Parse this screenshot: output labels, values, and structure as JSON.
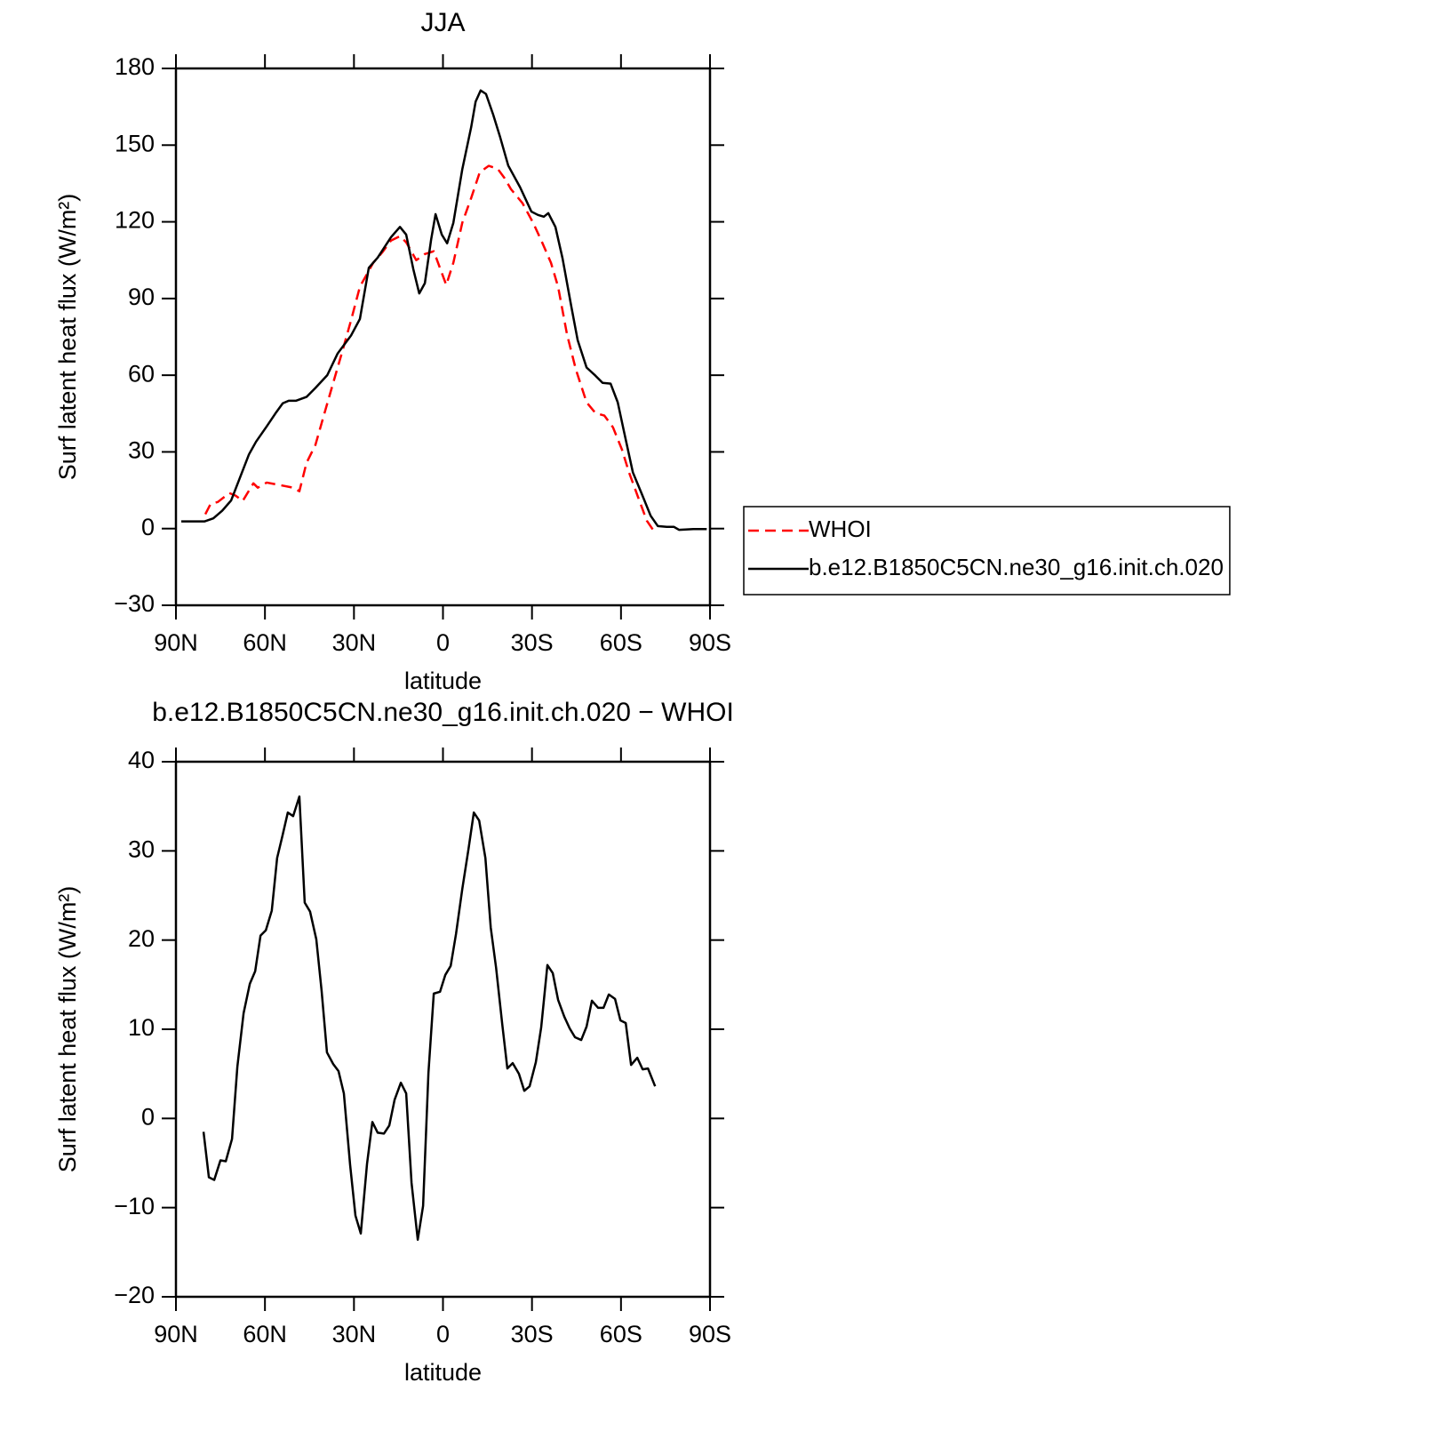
{
  "chart_data": [
    {
      "type": "line",
      "title": "JJA",
      "xlabel": "latitude",
      "ylabel": "Surf latent heat flux (W/m²)",
      "xlim": [
        90,
        -90
      ],
      "xticks": [
        {
          "value": 90,
          "label": "90N"
        },
        {
          "value": 60,
          "label": "60N"
        },
        {
          "value": 30,
          "label": "30N"
        },
        0,
        {
          "value": -30,
          "label": "30S"
        },
        {
          "value": -60,
          "label": "60S"
        },
        {
          "value": -90,
          "label": "90S"
        }
      ],
      "ylim": [
        -30,
        180
      ],
      "yticks": [
        {
          "value": -30,
          "label": "−30"
        },
        0,
        30,
        60,
        90,
        120,
        150,
        180
      ],
      "legend": "right",
      "series": [
        {
          "name": "WHOI",
          "color": "#ff0000",
          "style": "dashed",
          "x": [
            80.1,
            78.3,
            75.9,
            72,
            69.9,
            67.5,
            63.9,
            62.4,
            59.4,
            54.9,
            50.5,
            48.4,
            46,
            43,
            40,
            37,
            34,
            31,
            28,
            23.5,
            20.5,
            17.5,
            14.5,
            12.4,
            9,
            6.1,
            3.1,
            -1.1,
            -3.5,
            -6.5,
            -9.5,
            -12.4,
            -15.4,
            -18.4,
            -20.8,
            -22.9,
            -26.8,
            -30.4,
            -33.4,
            -36.4,
            -38.8,
            -41.8,
            -44.8,
            -48.4,
            -51.4,
            -54.4,
            -57.3,
            -60.3,
            -62.7,
            -65.7,
            -68.7,
            -71.7
          ],
          "values": [
            5.6,
            9.7,
            10.4,
            13.9,
            12.9,
            10.8,
            17.7,
            16,
            18,
            17,
            16,
            14.6,
            25.7,
            32.7,
            44.9,
            57,
            69,
            81.4,
            94.6,
            104,
            108,
            112.7,
            114.4,
            112,
            105,
            107.4,
            108.5,
            95.3,
            104,
            119.6,
            129.3,
            139.4,
            141.9,
            140.8,
            137,
            132.8,
            127.3,
            119.6,
            112,
            104,
            94.6,
            76,
            62.2,
            49.4,
            45.2,
            44.2,
            39.6,
            31,
            22,
            12.5,
            3.1,
            -2
          ]
        },
        {
          "name": "b.e12.B1850C5CN.ne30_g16.init.ch.020",
          "color": "#000000",
          "style": "solid",
          "x": [
            88.2,
            80.4,
            77.4,
            74.4,
            71.4,
            68.4,
            65.4,
            63,
            59.4,
            56.5,
            54,
            52,
            49.6,
            46,
            43,
            39,
            35.5,
            31,
            28,
            25,
            22,
            17.5,
            14.5,
            12.4,
            10,
            8,
            6.1,
            4,
            2.5,
            0.4,
            -1.4,
            -3.5,
            -6.5,
            -9.5,
            -11,
            -12.7,
            -14.5,
            -16.9,
            -19.3,
            -22,
            -26,
            -29.8,
            -32,
            -34,
            -35.5,
            -37.9,
            -40.3,
            -43.3,
            -45.4,
            -48.4,
            -51.4,
            -53.8,
            -56.5,
            -58.9,
            -61,
            -64,
            -67,
            -70,
            -72.4,
            -75.4,
            -77.8,
            -79.6,
            -84.4,
            -88.9
          ],
          "values": [
            2.8,
            2.8,
            4,
            7,
            11,
            20,
            29,
            34,
            40,
            45,
            49,
            50,
            50,
            51.5,
            55,
            60,
            68.5,
            75.5,
            82,
            102,
            106,
            114,
            118,
            115,
            101.5,
            92,
            96,
            113,
            123,
            115,
            111.6,
            119.6,
            140.5,
            157,
            167,
            171.4,
            170,
            162,
            153,
            142,
            133.5,
            124,
            122.7,
            122,
            123.4,
            118,
            105.7,
            86.6,
            73.7,
            63,
            59.8,
            57,
            56.7,
            49.4,
            38,
            22,
            13.6,
            5,
            1,
            0.7,
            0.7,
            -0.5,
            -0.2,
            -0.2
          ]
        }
      ]
    },
    {
      "type": "line",
      "title": "b.e12.B1850C5CN.ne30_g16.init.ch.020 − WHOI",
      "xlabel": "latitude",
      "ylabel": "Surf latent heat flux (W/m²)",
      "xlim": [
        90,
        -90
      ],
      "xticks": [
        {
          "value": 90,
          "label": "90N"
        },
        {
          "value": 60,
          "label": "60N"
        },
        {
          "value": 30,
          "label": "30N"
        },
        0,
        {
          "value": -30,
          "label": "30S"
        },
        {
          "value": -60,
          "label": "60S"
        },
        {
          "value": -90,
          "label": "90S"
        }
      ],
      "ylim": [
        -20,
        40
      ],
      "yticks": [
        {
          "value": -20,
          "label": "−20"
        },
        {
          "value": -10,
          "label": "−10"
        },
        0,
        10,
        20,
        30,
        40
      ],
      "series": [
        {
          "color": "#000000",
          "style": "solid",
          "x": [
            80.7,
            78.9,
            77.1,
            75,
            73.2,
            71.1,
            69.3,
            67.2,
            65.1,
            63.3,
            61.5,
            59.7,
            57.7,
            55.9,
            54.1,
            52.3,
            50.5,
            48.4,
            46.6,
            44.8,
            42.7,
            40.9,
            39.1,
            37,
            35.2,
            33.4,
            31.3,
            29.5,
            27.7,
            25.6,
            23.8,
            22,
            19.9,
            18.1,
            16.3,
            14.2,
            12.4,
            10.6,
            8.5,
            6.7,
            4.9,
            3.1,
            1,
            -0.8,
            -2.6,
            -4.4,
            -6.5,
            -8.6,
            -10.4,
            -12.2,
            -14.3,
            -16.1,
            -17.9,
            -20,
            -21.7,
            -23.5,
            -25.6,
            -27.4,
            -29.2,
            -31.3,
            -33.1,
            -35.2,
            -37,
            -38.8,
            -40.9,
            -42.7,
            -44.5,
            -46.6,
            -48.4,
            -50.2,
            -52.3,
            -54.1,
            -55.9,
            -58,
            -59.8,
            -61.6,
            -63.4,
            -65.5,
            -67.3,
            -69.1,
            -71.5
          ],
          "values": [
            -1.5,
            -6.6,
            -6.9,
            -4.7,
            -4.8,
            -2.3,
            5.8,
            11.8,
            15.1,
            16.5,
            20.5,
            21.1,
            23.3,
            29.2,
            31.7,
            34.3,
            33.9,
            36.1,
            24.2,
            23.2,
            20.1,
            14.3,
            7.4,
            6.1,
            5.3,
            2.8,
            -5.2,
            -10.9,
            -12.9,
            -5.1,
            -0.4,
            -1.6,
            -1.7,
            -0.8,
            2.1,
            4,
            2.8,
            -7.2,
            -13.6,
            -9.8,
            5.1,
            14,
            14.2,
            16.1,
            17.1,
            20.7,
            25.7,
            30.2,
            34.3,
            33.4,
            29.2,
            21.4,
            16.9,
            10.5,
            5.6,
            6.2,
            5,
            3.1,
            3.6,
            6.3,
            10.2,
            17.2,
            16.3,
            13.3,
            11.4,
            10.1,
            9.1,
            8.8,
            10.3,
            13.2,
            12.4,
            12.4,
            13.9,
            13.4,
            11,
            10.7,
            6,
            6.8,
            5.5,
            5.6,
            3.6
          ]
        }
      ]
    }
  ]
}
